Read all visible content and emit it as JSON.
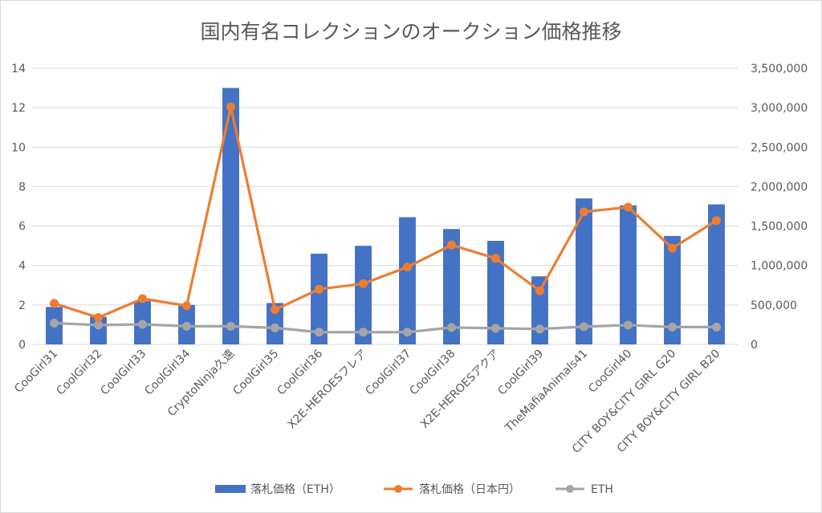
{
  "chart_data": {
    "type": "bar",
    "title": "国内有名コレクションのオークション価格推移",
    "categories": [
      "CooGirl31",
      "CoolGirl32",
      "CoolGirl33",
      "CoolGirl34",
      "CryptoNinja久遠",
      "CoolGirl35",
      "CoolGirl36",
      "X2E-HEROESフレア",
      "CoolGirl37",
      "CoolGirl38",
      "X2E-HEROESアクア",
      "CoolGirl39",
      "TheMafiaAnimals41",
      "CooGirl40",
      "CITY BOY&CITY GIRL G20",
      "CITY BOY&CITY GIRL B20"
    ],
    "series": [
      {
        "name": "落札価格（ETH）",
        "kind": "bar",
        "axis": "left",
        "color": "#4472c4",
        "values": [
          1.9,
          1.4,
          2.2,
          2.0,
          13.0,
          2.1,
          4.6,
          5.0,
          6.45,
          5.85,
          5.25,
          3.45,
          7.4,
          7.05,
          5.5,
          7.1
        ]
      },
      {
        "name": "落札価格（日本円）",
        "kind": "line",
        "axis": "right",
        "color": "#ed7d31",
        "values": [
          520000,
          340000,
          580000,
          490000,
          3010000,
          440000,
          700000,
          770000,
          980000,
          1260000,
          1090000,
          680000,
          1680000,
          1740000,
          1220000,
          1570000
        ]
      },
      {
        "name": "ETH",
        "kind": "line",
        "axis": "right",
        "color": "#a5a5a5",
        "values": [
          270000,
          245000,
          255000,
          230000,
          230000,
          210000,
          155000,
          155000,
          155000,
          215000,
          205000,
          195000,
          225000,
          245000,
          220000,
          220000
        ]
      }
    ],
    "y_left": {
      "min": 0,
      "max": 14,
      "step": 2,
      "ticks": [
        "0",
        "2",
        "4",
        "6",
        "8",
        "10",
        "12",
        "14"
      ]
    },
    "y_right": {
      "min": 0,
      "max": 3500000,
      "step": 500000,
      "ticks": [
        "0",
        "500,000",
        "1,000,000",
        "1,500,000",
        "2,000,000",
        "2,500,000",
        "3,000,000",
        "3,500,000"
      ]
    },
    "grid": true,
    "legend_position": "bottom",
    "colors": {
      "grid": "#d9d9d9",
      "text": "#595959",
      "bar": "#4472c4",
      "line_jpy": "#ed7d31",
      "line_eth": "#a5a5a5"
    }
  }
}
